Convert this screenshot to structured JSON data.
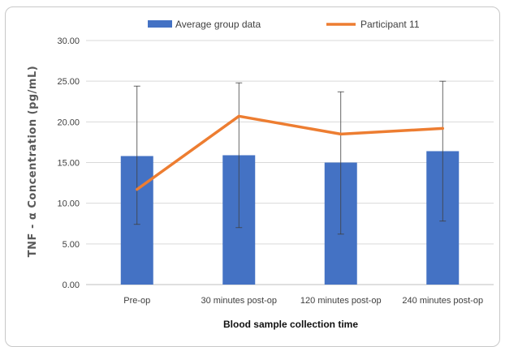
{
  "chart_data": {
    "type": "bar",
    "title": "",
    "xlabel": "Blood sample collection time",
    "ylabel": "TNF - α Concentration (pg/mL)",
    "categories": [
      "Pre-op",
      "30 minutes post-op",
      "120 minutes post-op",
      "240 minutes post-op"
    ],
    "ylim": [
      0,
      30
    ],
    "yticks": [
      "0.00",
      "5.00",
      "10.00",
      "15.00",
      "20.00",
      "25.00",
      "30.00"
    ],
    "grid": true,
    "legend_position": "top",
    "series": [
      {
        "name": "Average group data",
        "kind": "bar",
        "color": "#4472C4",
        "values": [
          15.8,
          15.9,
          15.0,
          16.4
        ],
        "error_low": [
          7.4,
          7.0,
          6.2,
          7.8
        ],
        "error_high": [
          24.4,
          24.8,
          23.7,
          25.0
        ]
      },
      {
        "name": "Participant 11",
        "kind": "line",
        "color": "#ED7D31",
        "values": [
          11.7,
          20.7,
          18.5,
          19.2
        ]
      }
    ]
  }
}
